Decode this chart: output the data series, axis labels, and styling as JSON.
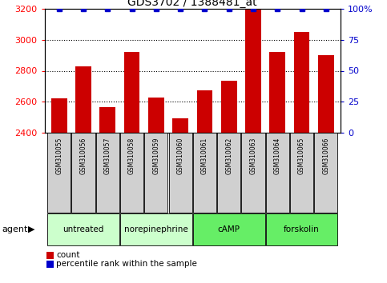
{
  "title": "GDS3702 / 1388481_at",
  "samples": [
    "GSM310055",
    "GSM310056",
    "GSM310057",
    "GSM310058",
    "GSM310059",
    "GSM310060",
    "GSM310061",
    "GSM310062",
    "GSM310063",
    "GSM310064",
    "GSM310065",
    "GSM310066"
  ],
  "counts": [
    2625,
    2830,
    2565,
    2920,
    2630,
    2495,
    2675,
    2735,
    3200,
    2920,
    3050,
    2900
  ],
  "percentiles": [
    100,
    100,
    100,
    100,
    100,
    100,
    100,
    100,
    100,
    100,
    100,
    100
  ],
  "ylim_left": [
    2400,
    3200
  ],
  "ylim_right": [
    0,
    100
  ],
  "yticks_left": [
    2400,
    2600,
    2800,
    3000,
    3200
  ],
  "yticks_right": [
    0,
    25,
    50,
    75,
    100
  ],
  "ytick_labels_right": [
    "0",
    "25",
    "50",
    "75",
    "100%"
  ],
  "bar_color": "#cc0000",
  "percentile_color": "#0000cc",
  "agents": [
    {
      "label": "untreated",
      "start": 0,
      "end": 3,
      "color": "#ccffcc"
    },
    {
      "label": "norepinephrine",
      "start": 3,
      "end": 6,
      "color": "#ccffcc"
    },
    {
      "label": "cAMP",
      "start": 6,
      "end": 9,
      "color": "#66ee66"
    },
    {
      "label": "forskolin",
      "start": 9,
      "end": 12,
      "color": "#66ee66"
    }
  ],
  "agent_label": "agent",
  "legend_count_label": "count",
  "legend_percentile_label": "percentile rank within the sample",
  "background_color": "#ffffff",
  "sample_box_color": "#d0d0d0",
  "title_fontsize": 10,
  "tick_fontsize": 8,
  "bar_width": 0.65
}
